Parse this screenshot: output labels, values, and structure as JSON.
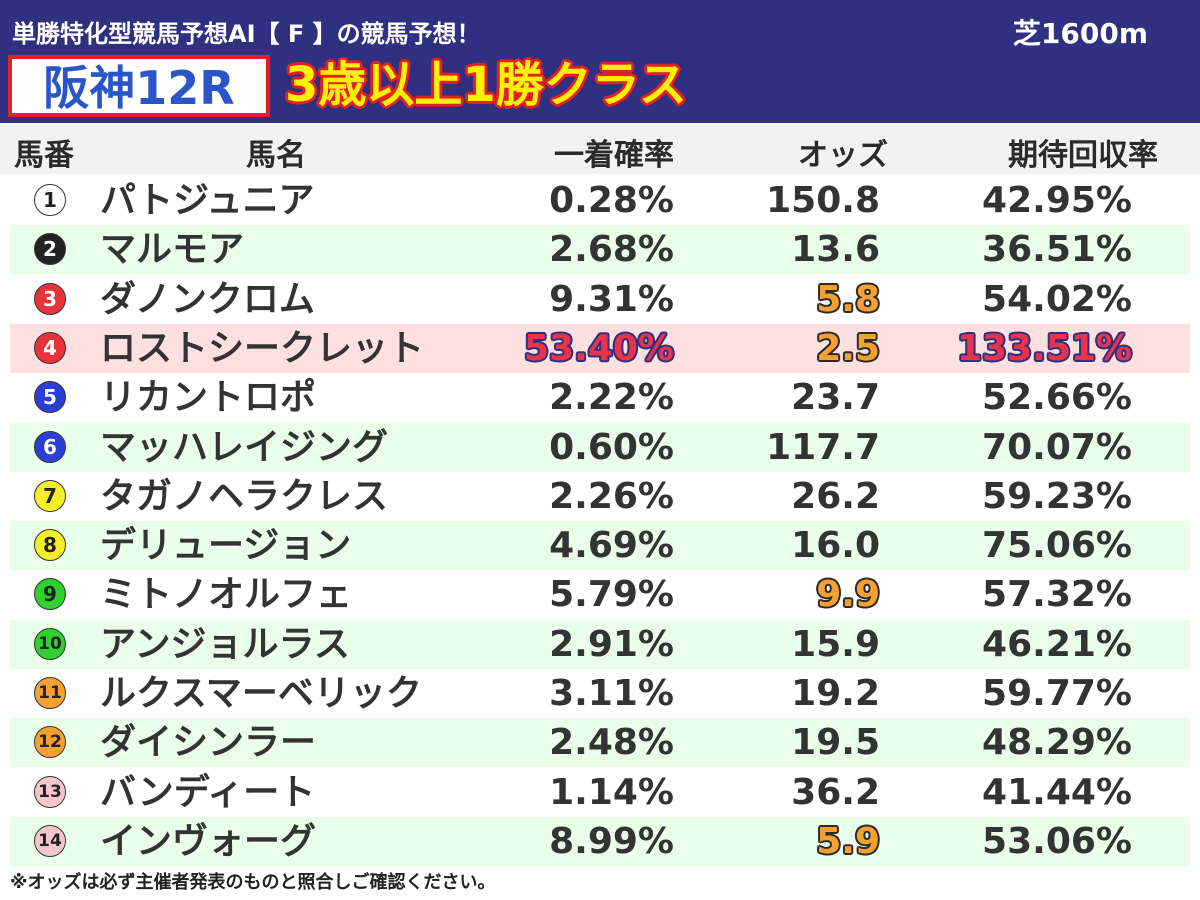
{
  "header": {
    "subtitle": "単勝特化型競馬予想AI【 F 】の競馬予想！",
    "distance": "芝1600m",
    "venue": "阪神12R",
    "race_class": "3歳以上1勝クラス"
  },
  "columns": {
    "number": "馬番",
    "name": "馬名",
    "win_prob": "一着確率",
    "odds": "オッズ",
    "expected_return": "期待回収率"
  },
  "rows": [
    {
      "num": "1",
      "name": "パトジュニア",
      "prob": "0.28%",
      "odds": "150.8",
      "ret": "42.95%",
      "band": "white",
      "circle_bg": "#ffffff",
      "circle_fg": "#222222",
      "hl_prob": false,
      "hl_odds": false,
      "hl_ret": false
    },
    {
      "num": "2",
      "name": "マルモア",
      "prob": "2.68%",
      "odds": "13.6",
      "ret": "36.51%",
      "band": "green",
      "circle_bg": "#222222",
      "circle_fg": "#ffffff",
      "hl_prob": false,
      "hl_odds": false,
      "hl_ret": false
    },
    {
      "num": "3",
      "name": "ダノンクロム",
      "prob": "9.31%",
      "odds": "5.8",
      "ret": "54.02%",
      "band": "white",
      "circle_bg": "#e8333a",
      "circle_fg": "#ffffff",
      "hl_prob": false,
      "hl_odds": true,
      "hl_ret": false
    },
    {
      "num": "4",
      "name": "ロストシークレット",
      "prob": "53.40%",
      "odds": "2.5",
      "ret": "133.51%",
      "band": "pink",
      "circle_bg": "#e8333a",
      "circle_fg": "#ffffff",
      "hl_prob": true,
      "hl_odds": true,
      "hl_ret": true
    },
    {
      "num": "5",
      "name": "リカントロポ",
      "prob": "2.22%",
      "odds": "23.7",
      "ret": "52.66%",
      "band": "white",
      "circle_bg": "#2a3fd8",
      "circle_fg": "#ffffff",
      "hl_prob": false,
      "hl_odds": false,
      "hl_ret": false
    },
    {
      "num": "6",
      "name": "マッハレイジング",
      "prob": "0.60%",
      "odds": "117.7",
      "ret": "70.07%",
      "band": "green",
      "circle_bg": "#2a3fd8",
      "circle_fg": "#ffffff",
      "hl_prob": false,
      "hl_odds": false,
      "hl_ret": false
    },
    {
      "num": "7",
      "name": "タガノヘラクレス",
      "prob": "2.26%",
      "odds": "26.2",
      "ret": "59.23%",
      "band": "white",
      "circle_bg": "#f7ee2a",
      "circle_fg": "#222222",
      "hl_prob": false,
      "hl_odds": false,
      "hl_ret": false
    },
    {
      "num": "8",
      "name": "デリュージョン",
      "prob": "4.69%",
      "odds": "16.0",
      "ret": "75.06%",
      "band": "green",
      "circle_bg": "#f7ee2a",
      "circle_fg": "#222222",
      "hl_prob": false,
      "hl_odds": false,
      "hl_ret": false
    },
    {
      "num": "9",
      "name": "ミトノオルフェ",
      "prob": "5.79%",
      "odds": "9.9",
      "ret": "57.32%",
      "band": "white",
      "circle_bg": "#2ed12e",
      "circle_fg": "#222222",
      "hl_prob": false,
      "hl_odds": true,
      "hl_ret": false
    },
    {
      "num": "10",
      "name": "アンジョルラス",
      "prob": "2.91%",
      "odds": "15.9",
      "ret": "46.21%",
      "band": "green",
      "circle_bg": "#2ed12e",
      "circle_fg": "#222222",
      "hl_prob": false,
      "hl_odds": false,
      "hl_ret": false
    },
    {
      "num": "11",
      "name": "ルクスマーベリック",
      "prob": "3.11%",
      "odds": "19.2",
      "ret": "59.77%",
      "band": "white",
      "circle_bg": "#f5a030",
      "circle_fg": "#222222",
      "hl_prob": false,
      "hl_odds": false,
      "hl_ret": false
    },
    {
      "num": "12",
      "name": "ダイシンラー",
      "prob": "2.48%",
      "odds": "19.5",
      "ret": "48.29%",
      "band": "green",
      "circle_bg": "#f5a030",
      "circle_fg": "#222222",
      "hl_prob": false,
      "hl_odds": false,
      "hl_ret": false
    },
    {
      "num": "13",
      "name": "バンディート",
      "prob": "1.14%",
      "odds": "36.2",
      "ret": "41.44%",
      "band": "white",
      "circle_bg": "#f7c6cc",
      "circle_fg": "#222222",
      "hl_prob": false,
      "hl_odds": false,
      "hl_ret": false
    },
    {
      "num": "14",
      "name": "インヴォーグ",
      "prob": "8.99%",
      "odds": "5.9",
      "ret": "53.06%",
      "band": "green",
      "circle_bg": "#f7c6cc",
      "circle_fg": "#222222",
      "hl_prob": false,
      "hl_odds": true,
      "hl_ret": false
    }
  ],
  "footnote": "※オッズは必ず主催者発表のものと照合しご確認ください。"
}
